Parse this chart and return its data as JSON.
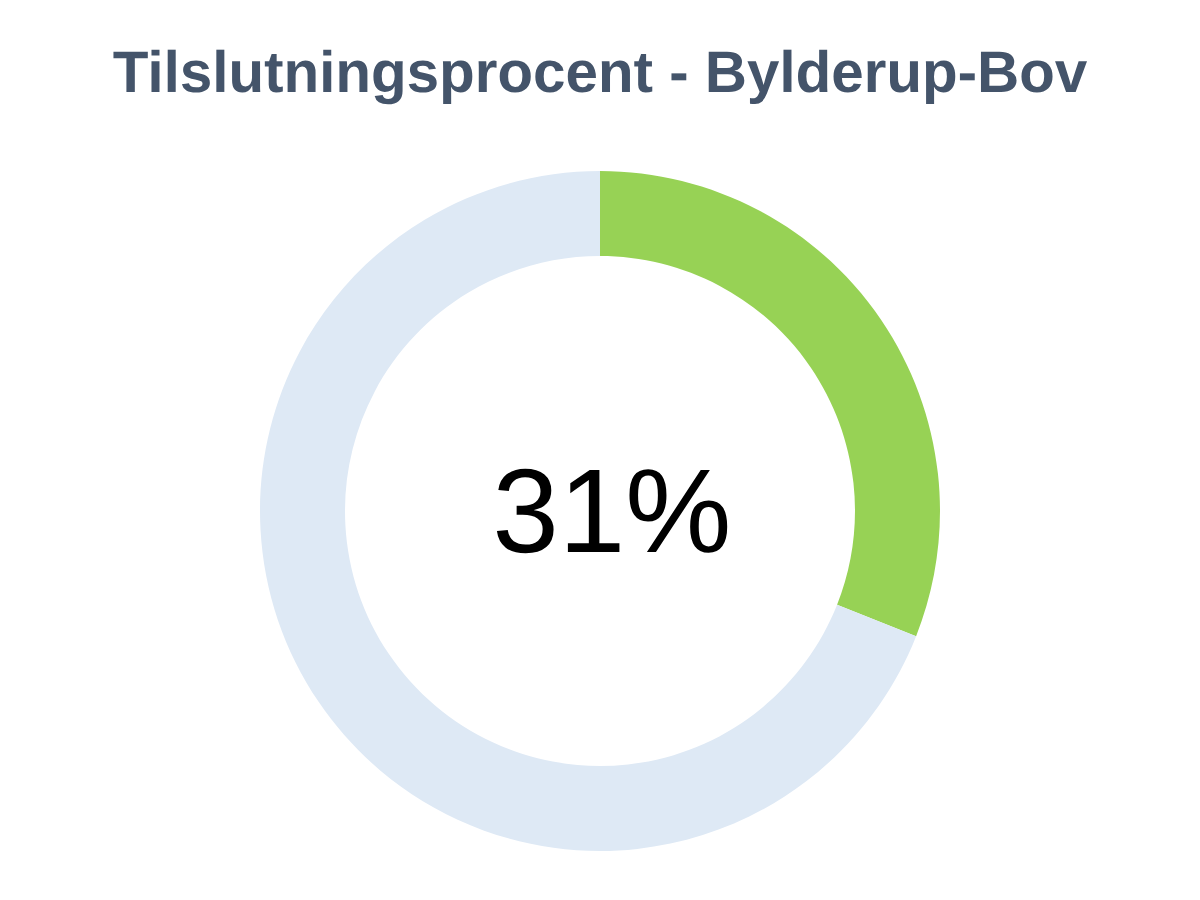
{
  "chart_data": {
    "type": "donut",
    "title": "Tilslutningsprocent - Bylderup-Bov",
    "categories": [
      null,
      null
    ],
    "values": [
      31,
      69
    ],
    "colors": [
      "#97d255",
      "#dee9f5"
    ],
    "annotations": [
      "31%"
    ]
  }
}
